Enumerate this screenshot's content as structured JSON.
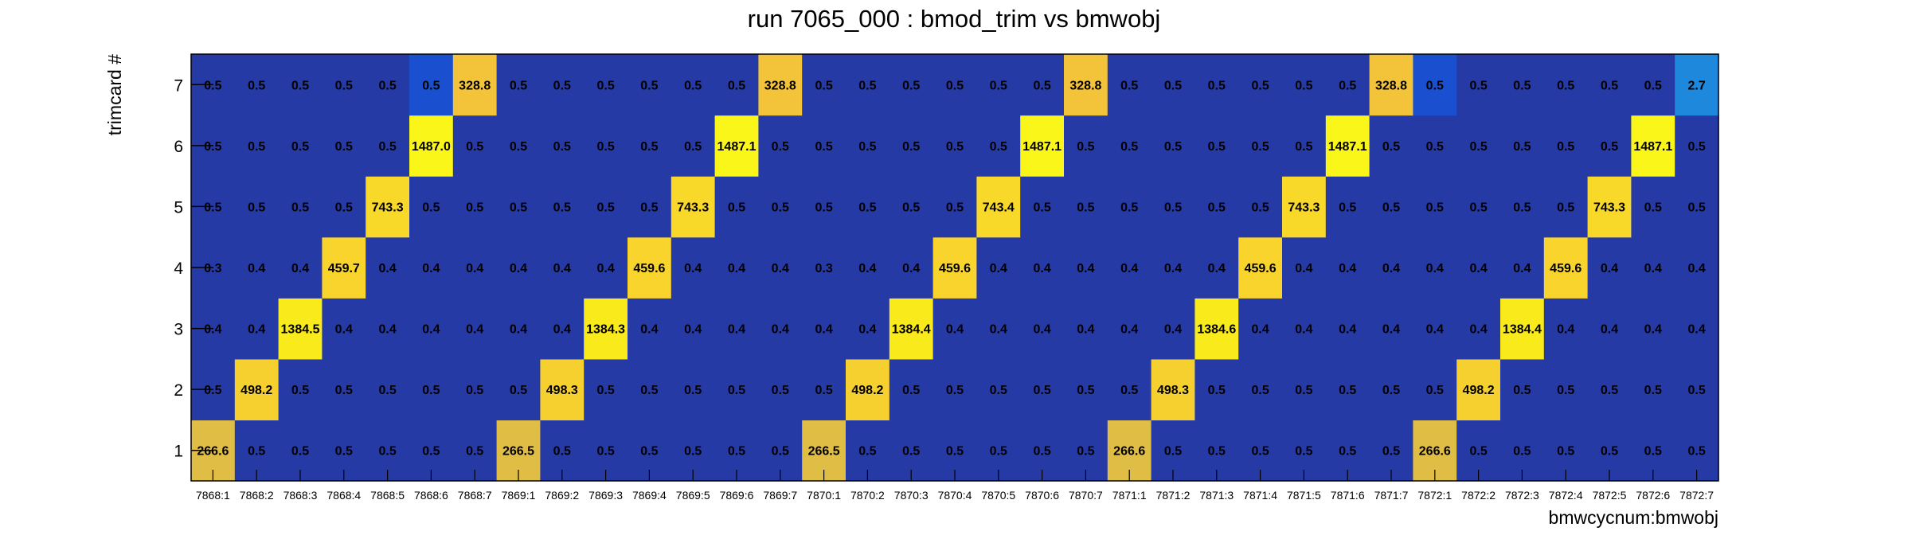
{
  "chart_data": {
    "type": "heatmap",
    "title": "run 7065_000 : bmod_trim vs bmwobj",
    "xlabel": "bmwcycnum:bmwobj",
    "ylabel": "trimcard #",
    "x_categories": [
      "7868:1",
      "7868:2",
      "7868:3",
      "7868:4",
      "7868:5",
      "7868:6",
      "7868:7",
      "7869:1",
      "7869:2",
      "7869:3",
      "7869:4",
      "7869:5",
      "7869:6",
      "7869:7",
      "7870:1",
      "7870:2",
      "7870:3",
      "7870:4",
      "7870:5",
      "7870:6",
      "7870:7",
      "7871:1",
      "7871:2",
      "7871:3",
      "7871:4",
      "7871:5",
      "7871:6",
      "7871:7",
      "7872:1",
      "7872:2",
      "7872:3",
      "7872:4",
      "7872:5",
      "7872:6",
      "7872:7"
    ],
    "y_categories": [
      "1",
      "2",
      "3",
      "4",
      "5",
      "6",
      "7"
    ],
    "rows": [
      [
        "266.6",
        "0.5",
        "0.5",
        "0.5",
        "0.5",
        "0.5",
        "0.5",
        "266.5",
        "0.5",
        "0.5",
        "0.5",
        "0.5",
        "0.5",
        "0.5",
        "266.5",
        "0.5",
        "0.5",
        "0.5",
        "0.5",
        "0.5",
        "0.5",
        "266.6",
        "0.5",
        "0.5",
        "0.5",
        "0.5",
        "0.5",
        "0.5",
        "266.6",
        "0.5",
        "0.5",
        "0.5",
        "0.5",
        "0.5",
        "0.5"
      ],
      [
        "0.5",
        "498.2",
        "0.5",
        "0.5",
        "0.5",
        "0.5",
        "0.5",
        "0.5",
        "498.3",
        "0.5",
        "0.5",
        "0.5",
        "0.5",
        "0.5",
        "0.5",
        "498.2",
        "0.5",
        "0.5",
        "0.5",
        "0.5",
        "0.5",
        "0.5",
        "498.3",
        "0.5",
        "0.5",
        "0.5",
        "0.5",
        "0.5",
        "0.5",
        "498.2",
        "0.5",
        "0.5",
        "0.5",
        "0.5",
        "0.5"
      ],
      [
        "0.4",
        "0.4",
        "1384.5",
        "0.4",
        "0.4",
        "0.4",
        "0.4",
        "0.4",
        "0.4",
        "1384.3",
        "0.4",
        "0.4",
        "0.4",
        "0.4",
        "0.4",
        "0.4",
        "1384.4",
        "0.4",
        "0.4",
        "0.4",
        "0.4",
        "0.4",
        "0.4",
        "1384.6",
        "0.4",
        "0.4",
        "0.4",
        "0.4",
        "0.4",
        "0.4",
        "1384.4",
        "0.4",
        "0.4",
        "0.4",
        "0.4"
      ],
      [
        "0.3",
        "0.4",
        "0.4",
        "459.7",
        "0.4",
        "0.4",
        "0.4",
        "0.4",
        "0.4",
        "0.4",
        "459.6",
        "0.4",
        "0.4",
        "0.4",
        "0.3",
        "0.4",
        "0.4",
        "459.6",
        "0.4",
        "0.4",
        "0.4",
        "0.4",
        "0.4",
        "0.4",
        "459.6",
        "0.4",
        "0.4",
        "0.4",
        "0.4",
        "0.4",
        "0.4",
        "459.6",
        "0.4",
        "0.4",
        "0.4"
      ],
      [
        "0.5",
        "0.5",
        "0.5",
        "0.5",
        "743.3",
        "0.5",
        "0.5",
        "0.5",
        "0.5",
        "0.5",
        "0.5",
        "743.3",
        "0.5",
        "0.5",
        "0.5",
        "0.5",
        "0.5",
        "0.5",
        "743.4",
        "0.5",
        "0.5",
        "0.5",
        "0.5",
        "0.5",
        "0.5",
        "743.3",
        "0.5",
        "0.5",
        "0.5",
        "0.5",
        "0.5",
        "0.5",
        "743.3",
        "0.5",
        "0.5"
      ],
      [
        "0.5",
        "0.5",
        "0.5",
        "0.5",
        "0.5",
        "1487.0",
        "0.5",
        "0.5",
        "0.5",
        "0.5",
        "0.5",
        "0.5",
        "1487.1",
        "0.5",
        "0.5",
        "0.5",
        "0.5",
        "0.5",
        "0.5",
        "1487.1",
        "0.5",
        "0.5",
        "0.5",
        "0.5",
        "0.5",
        "0.5",
        "1487.1",
        "0.5",
        "0.5",
        "0.5",
        "0.5",
        "0.5",
        "0.5",
        "1487.1",
        "0.5"
      ],
      [
        "0.5",
        "0.5",
        "0.5",
        "0.5",
        "0.5",
        "0.5",
        "328.8",
        "0.5",
        "0.5",
        "0.5",
        "0.5",
        "0.5",
        "0.5",
        "328.8",
        "0.5",
        "0.5",
        "0.5",
        "0.5",
        "0.5",
        "0.5",
        "328.8",
        "0.5",
        "0.5",
        "0.5",
        "0.5",
        "0.5",
        "0.5",
        "328.8",
        "0.5",
        "0.5",
        "0.5",
        "0.5",
        "0.5",
        "0.5",
        "2.7"
      ]
    ],
    "colors": {
      "low": "#263aa6",
      "cell_7868_6_row7": "#1a50d0",
      "cell_7872_1_row7": "#1a50d0",
      "cell_7872_7_row7": "#1e88dc",
      "row1_peak": "#e0bd45",
      "row2_peak": "#f6d02e",
      "row3_peak": "#f9ea1c",
      "row4_peak": "#f8d42c",
      "row5_peak": "#f8d92a",
      "row6_peak": "#fbf61a",
      "row7_peak": "#f3c43a",
      "frame": "#000000"
    },
    "grid": false,
    "legend": "none"
  }
}
